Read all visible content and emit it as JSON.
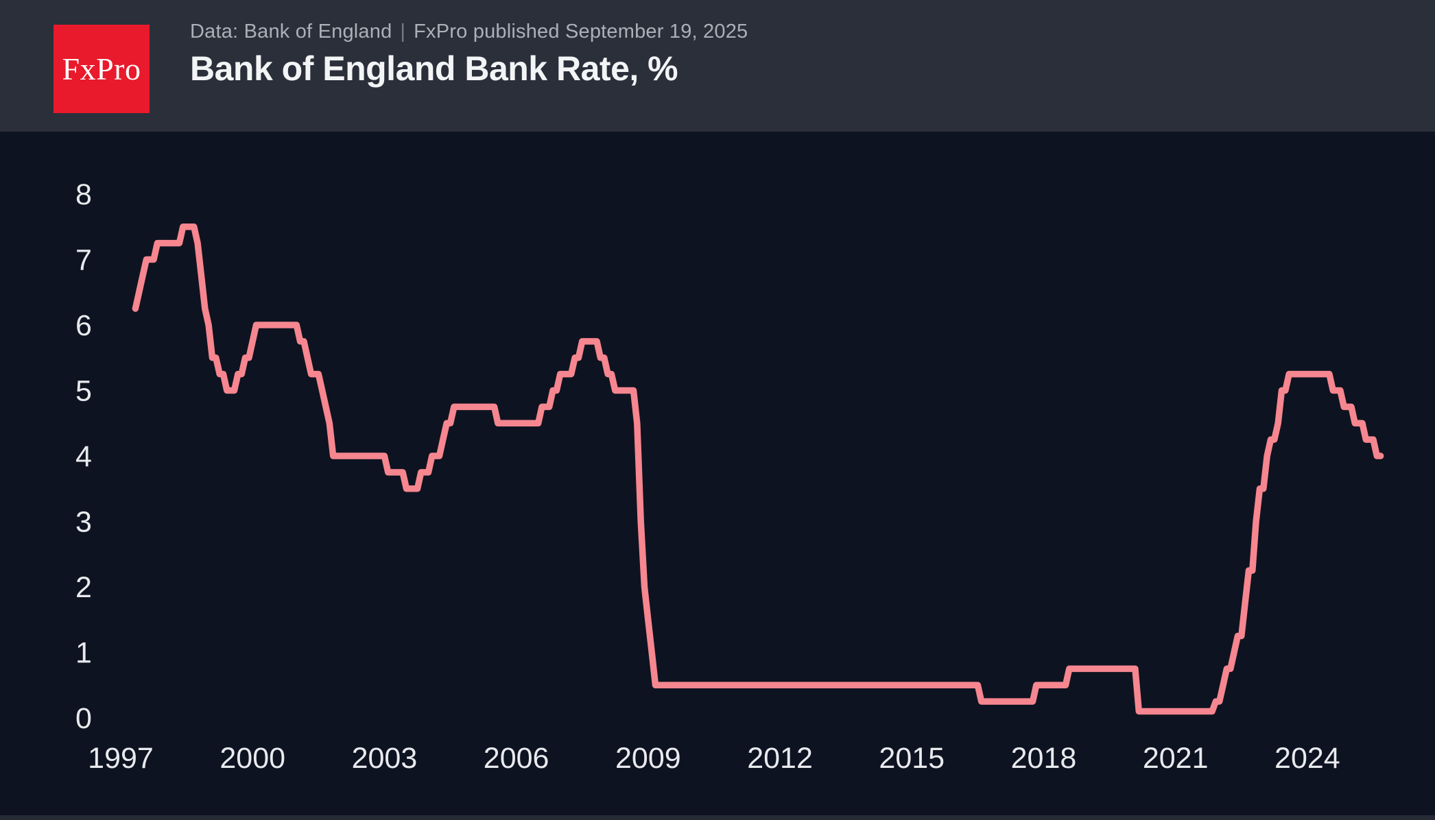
{
  "header": {
    "logo_text": "FxPro",
    "source": "Data: Bank of England",
    "separator": "|",
    "published": "FxPro published September 19, 2025",
    "title": "Bank of England Bank Rate, %"
  },
  "colors": {
    "page_background": "#0e1321",
    "header_background": "#2b2f3a",
    "logo_red": "#e81a2b",
    "line_pink": "#f6868f",
    "tick_text": "#e8eaee"
  },
  "chart_data": {
    "type": "line",
    "title": "Bank of England Bank Rate, %",
    "series_name": "Bank of England Bank Rate (%)",
    "xlabel": "",
    "ylabel": "",
    "x_ticks": [
      1997,
      2000,
      2003,
      2006,
      2009,
      2012,
      2015,
      2018,
      2021,
      2024
    ],
    "y_ticks": [
      0,
      1,
      2,
      3,
      4,
      5,
      6,
      7,
      8
    ],
    "xlim": [
      1996.8,
      2025.9
    ],
    "ylim": [
      0,
      8.6
    ],
    "grid": false,
    "legend": "none",
    "start": "1997-05",
    "end": "2025-09",
    "sampling": "monthly step series interpolated between rate-change events",
    "rate_changes": [
      {
        "date": "1997-05",
        "rate": 6.25
      },
      {
        "date": "1997-06",
        "rate": 6.5
      },
      {
        "date": "1997-07",
        "rate": 6.75
      },
      {
        "date": "1997-08",
        "rate": 7.0
      },
      {
        "date": "1997-11",
        "rate": 7.25
      },
      {
        "date": "1998-06",
        "rate": 7.5
      },
      {
        "date": "1998-10",
        "rate": 7.25
      },
      {
        "date": "1998-11",
        "rate": 6.75
      },
      {
        "date": "1998-12",
        "rate": 6.25
      },
      {
        "date": "1999-01",
        "rate": 6.0
      },
      {
        "date": "1999-02",
        "rate": 5.5
      },
      {
        "date": "1999-04",
        "rate": 5.25
      },
      {
        "date": "1999-06",
        "rate": 5.0
      },
      {
        "date": "1999-09",
        "rate": 5.25
      },
      {
        "date": "1999-11",
        "rate": 5.5
      },
      {
        "date": "2000-01",
        "rate": 5.75
      },
      {
        "date": "2000-02",
        "rate": 6.0
      },
      {
        "date": "2001-02",
        "rate": 5.75
      },
      {
        "date": "2001-04",
        "rate": 5.5
      },
      {
        "date": "2001-05",
        "rate": 5.25
      },
      {
        "date": "2001-08",
        "rate": 5.0
      },
      {
        "date": "2001-09",
        "rate": 4.75
      },
      {
        "date": "2001-10",
        "rate": 4.5
      },
      {
        "date": "2001-11",
        "rate": 4.0
      },
      {
        "date": "2003-02",
        "rate": 3.75
      },
      {
        "date": "2003-07",
        "rate": 3.5
      },
      {
        "date": "2003-11",
        "rate": 3.75
      },
      {
        "date": "2004-02",
        "rate": 4.0
      },
      {
        "date": "2004-05",
        "rate": 4.25
      },
      {
        "date": "2004-06",
        "rate": 4.5
      },
      {
        "date": "2004-08",
        "rate": 4.75
      },
      {
        "date": "2005-08",
        "rate": 4.5
      },
      {
        "date": "2006-08",
        "rate": 4.75
      },
      {
        "date": "2006-11",
        "rate": 5.0
      },
      {
        "date": "2007-01",
        "rate": 5.25
      },
      {
        "date": "2007-05",
        "rate": 5.5
      },
      {
        "date": "2007-07",
        "rate": 5.75
      },
      {
        "date": "2007-12",
        "rate": 5.5
      },
      {
        "date": "2008-02",
        "rate": 5.25
      },
      {
        "date": "2008-04",
        "rate": 5.0
      },
      {
        "date": "2008-10",
        "rate": 4.5
      },
      {
        "date": "2008-11",
        "rate": 3.0
      },
      {
        "date": "2008-12",
        "rate": 2.0
      },
      {
        "date": "2009-01",
        "rate": 1.5
      },
      {
        "date": "2009-02",
        "rate": 1.0
      },
      {
        "date": "2009-03",
        "rate": 0.5
      },
      {
        "date": "2016-08",
        "rate": 0.25
      },
      {
        "date": "2017-11",
        "rate": 0.5
      },
      {
        "date": "2018-08",
        "rate": 0.75
      },
      {
        "date": "2020-03",
        "rate": 0.1
      },
      {
        "date": "2021-12",
        "rate": 0.25
      },
      {
        "date": "2022-02",
        "rate": 0.5
      },
      {
        "date": "2022-03",
        "rate": 0.75
      },
      {
        "date": "2022-05",
        "rate": 1.0
      },
      {
        "date": "2022-06",
        "rate": 1.25
      },
      {
        "date": "2022-08",
        "rate": 1.75
      },
      {
        "date": "2022-09",
        "rate": 2.25
      },
      {
        "date": "2022-11",
        "rate": 3.0
      },
      {
        "date": "2022-12",
        "rate": 3.5
      },
      {
        "date": "2023-02",
        "rate": 4.0
      },
      {
        "date": "2023-03",
        "rate": 4.25
      },
      {
        "date": "2023-05",
        "rate": 4.5
      },
      {
        "date": "2023-06",
        "rate": 5.0
      },
      {
        "date": "2023-08",
        "rate": 5.25
      },
      {
        "date": "2024-08",
        "rate": 5.0
      },
      {
        "date": "2024-11",
        "rate": 4.75
      },
      {
        "date": "2025-02",
        "rate": 4.5
      },
      {
        "date": "2025-05",
        "rate": 4.25
      },
      {
        "date": "2025-08",
        "rate": 4.0
      }
    ]
  }
}
